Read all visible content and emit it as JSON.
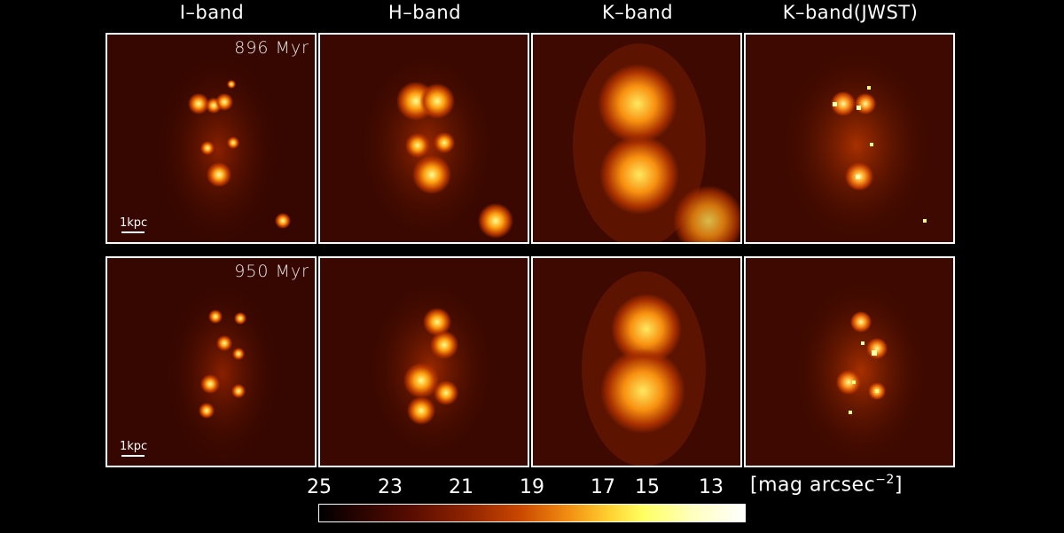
{
  "bands": [
    "I–band",
    "H–band",
    "K–band",
    "K–band(JWST)"
  ],
  "rows": [
    {
      "age": "896 Myr",
      "scale_label": "1kpc"
    },
    {
      "age": "950 Myr",
      "scale_label": "1kpc"
    }
  ],
  "colorbar": {
    "ticks": [
      "25",
      "23",
      "21",
      "19",
      "17",
      "15",
      "13"
    ],
    "unit": "[mag arcsec",
    "unit_exp": "−2",
    "unit_close": "]"
  }
}
